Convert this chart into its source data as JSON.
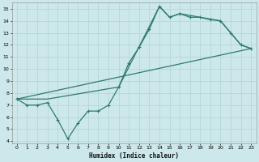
{
  "xlabel": "Humidex (Indice chaleur)",
  "bg_color": "#cde8ea",
  "grid_color": "#b8d8da",
  "line_color": "#2d7a6e",
  "xlim": [
    -0.5,
    23.5
  ],
  "ylim": [
    3.8,
    15.5
  ],
  "xticks": [
    0,
    1,
    2,
    3,
    4,
    5,
    6,
    7,
    8,
    9,
    10,
    11,
    12,
    13,
    14,
    15,
    16,
    17,
    18,
    19,
    20,
    21,
    22,
    23
  ],
  "yticks": [
    4,
    5,
    6,
    7,
    8,
    9,
    10,
    11,
    12,
    13,
    14,
    15
  ],
  "line1_x": [
    0,
    1,
    2,
    3,
    4,
    5,
    6,
    7,
    8,
    9,
    10,
    11,
    12,
    13,
    14,
    15,
    16,
    17,
    18,
    19,
    20,
    21,
    22,
    23
  ],
  "line1_y": [
    7.5,
    7.0,
    7.0,
    7.2,
    5.8,
    4.2,
    5.5,
    6.5,
    6.5,
    7.0,
    8.5,
    10.5,
    11.8,
    13.3,
    15.2,
    14.3,
    14.6,
    14.3,
    14.3,
    14.1,
    14.0,
    13.0,
    12.0,
    11.7
  ],
  "line2_x": [
    0,
    3,
    10,
    14,
    15,
    16,
    20,
    22,
    23
  ],
  "line2_y": [
    7.5,
    7.5,
    8.5,
    15.2,
    14.3,
    14.6,
    14.0,
    12.0,
    11.7
  ],
  "line3_x": [
    0,
    23
  ],
  "line3_y": [
    7.5,
    11.7
  ]
}
